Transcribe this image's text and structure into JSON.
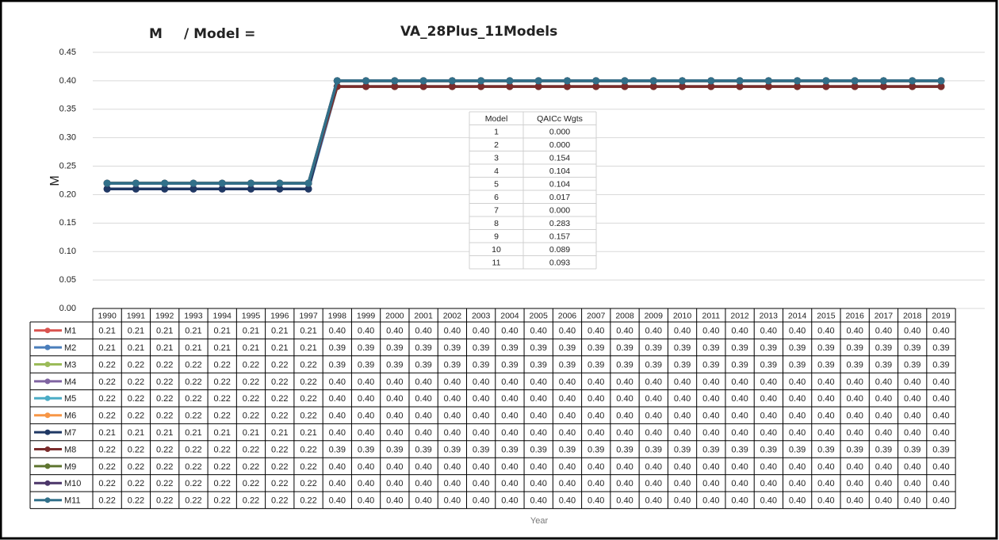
{
  "chart_data": {
    "type": "line",
    "title_label": "M",
    "title_model_label": "/ Model =",
    "title": "VA_28Plus_11Models",
    "y_label": "M",
    "x_label": "Year",
    "categories": [
      "1990",
      "1991",
      "1992",
      "1993",
      "1994",
      "1995",
      "1996",
      "1997",
      "1998",
      "1999",
      "2000",
      "2001",
      "2002",
      "2003",
      "2004",
      "2005",
      "2006",
      "2007",
      "2008",
      "2009",
      "2010",
      "2011",
      "2012",
      "2013",
      "2014",
      "2015",
      "2016",
      "2017",
      "2018",
      "2019"
    ],
    "ylim": [
      0,
      0.45
    ],
    "yticks": [
      {
        "value": 0,
        "label": "0.00"
      },
      0.05,
      {
        "value": 0.1,
        "label": "0.10"
      },
      0.15,
      {
        "value": 0.2,
        "label": "0.20"
      },
      0.25,
      {
        "value": 0.3,
        "label": "0.30"
      },
      0.35,
      {
        "value": 0.4,
        "label": "0.40"
      },
      0.45
    ],
    "grid": true,
    "series": [
      {
        "name": "M1",
        "color": "#d9534f",
        "values": [
          0.21,
          0.21,
          0.21,
          0.21,
          0.21,
          0.21,
          0.21,
          0.21,
          0.4,
          0.4,
          0.4,
          0.4,
          0.4,
          0.4,
          0.4,
          0.4,
          0.4,
          0.4,
          0.4,
          0.4,
          0.4,
          0.4,
          0.4,
          0.4,
          0.4,
          0.4,
          0.4,
          0.4,
          0.4,
          0.4
        ],
        "value_labels": [
          "0.21",
          "0.21",
          "0.21",
          "0.21",
          "0.21",
          "0.21",
          "0.21",
          "0.21",
          "0.40",
          "0.40",
          "0.40",
          "0.40",
          "0.40",
          "0.40",
          "0.40",
          "0.40",
          "0.40",
          "0.40",
          "0.40",
          "0.40",
          "0.40",
          "0.40",
          "0.40",
          "0.40",
          "0.40",
          "0.40",
          "0.40",
          "0.40",
          "0.40",
          "0.40"
        ]
      },
      {
        "name": "M2",
        "color": "#4a7ebb",
        "values": [
          0.21,
          0.21,
          0.21,
          0.21,
          0.21,
          0.21,
          0.21,
          0.21,
          0.39,
          0.39,
          0.39,
          0.39,
          0.39,
          0.39,
          0.39,
          0.39,
          0.39,
          0.39,
          0.39,
          0.39,
          0.39,
          0.39,
          0.39,
          0.39,
          0.39,
          0.39,
          0.39,
          0.39,
          0.39,
          0.39
        ],
        "value_labels": [
          "0.21",
          "0.21",
          "0.21",
          "0.21",
          "0.21",
          "0.21",
          "0.21",
          "0.21",
          "0.39",
          "0.39",
          "0.39",
          "0.39",
          "0.39",
          "0.39",
          "0.39",
          "0.39",
          "0.39",
          "0.39",
          "0.39",
          "0.39",
          "0.39",
          "0.39",
          "0.39",
          "0.39",
          "0.39",
          "0.39",
          "0.39",
          "0.39",
          "0.39",
          "0.39"
        ]
      },
      {
        "name": "M3",
        "color": "#9bbb59",
        "values": [
          0.22,
          0.22,
          0.22,
          0.22,
          0.22,
          0.22,
          0.22,
          0.22,
          0.39,
          0.39,
          0.39,
          0.39,
          0.39,
          0.39,
          0.39,
          0.39,
          0.39,
          0.39,
          0.39,
          0.39,
          0.39,
          0.39,
          0.39,
          0.39,
          0.39,
          0.39,
          0.39,
          0.39,
          0.39,
          0.39
        ],
        "value_labels": [
          "0.22",
          "0.22",
          "0.22",
          "0.22",
          "0.22",
          "0.22",
          "0.22",
          "0.22",
          "0.39",
          "0.39",
          "0.39",
          "0.39",
          "0.39",
          "0.39",
          "0.39",
          "0.39",
          "0.39",
          "0.39",
          "0.39",
          "0.39",
          "0.39",
          "0.39",
          "0.39",
          "0.39",
          "0.39",
          "0.39",
          "0.39",
          "0.39",
          "0.39",
          "0.39"
        ]
      },
      {
        "name": "M4",
        "color": "#8064a2",
        "values": [
          0.22,
          0.22,
          0.22,
          0.22,
          0.22,
          0.22,
          0.22,
          0.22,
          0.4,
          0.4,
          0.4,
          0.4,
          0.4,
          0.4,
          0.4,
          0.4,
          0.4,
          0.4,
          0.4,
          0.4,
          0.4,
          0.4,
          0.4,
          0.4,
          0.4,
          0.4,
          0.4,
          0.4,
          0.4,
          0.4
        ],
        "value_labels": [
          "0.22",
          "0.22",
          "0.22",
          "0.22",
          "0.22",
          "0.22",
          "0.22",
          "0.22",
          "0.40",
          "0.40",
          "0.40",
          "0.40",
          "0.40",
          "0.40",
          "0.40",
          "0.40",
          "0.40",
          "0.40",
          "0.40",
          "0.40",
          "0.40",
          "0.40",
          "0.40",
          "0.40",
          "0.40",
          "0.40",
          "0.40",
          "0.40",
          "0.40",
          "0.40"
        ]
      },
      {
        "name": "M5",
        "color": "#4bacc6",
        "values": [
          0.22,
          0.22,
          0.22,
          0.22,
          0.22,
          0.22,
          0.22,
          0.22,
          0.4,
          0.4,
          0.4,
          0.4,
          0.4,
          0.4,
          0.4,
          0.4,
          0.4,
          0.4,
          0.4,
          0.4,
          0.4,
          0.4,
          0.4,
          0.4,
          0.4,
          0.4,
          0.4,
          0.4,
          0.4,
          0.4
        ],
        "value_labels": [
          "0.22",
          "0.22",
          "0.22",
          "0.22",
          "0.22",
          "0.22",
          "0.22",
          "0.22",
          "0.40",
          "0.40",
          "0.40",
          "0.40",
          "0.40",
          "0.40",
          "0.40",
          "0.40",
          "0.40",
          "0.40",
          "0.40",
          "0.40",
          "0.40",
          "0.40",
          "0.40",
          "0.40",
          "0.40",
          "0.40",
          "0.40",
          "0.40",
          "0.40",
          "0.40"
        ]
      },
      {
        "name": "M6",
        "color": "#f79646",
        "values": [
          0.22,
          0.22,
          0.22,
          0.22,
          0.22,
          0.22,
          0.22,
          0.22,
          0.4,
          0.4,
          0.4,
          0.4,
          0.4,
          0.4,
          0.4,
          0.4,
          0.4,
          0.4,
          0.4,
          0.4,
          0.4,
          0.4,
          0.4,
          0.4,
          0.4,
          0.4,
          0.4,
          0.4,
          0.4,
          0.4
        ],
        "value_labels": [
          "0.22",
          "0.22",
          "0.22",
          "0.22",
          "0.22",
          "0.22",
          "0.22",
          "0.22",
          "0.40",
          "0.40",
          "0.40",
          "0.40",
          "0.40",
          "0.40",
          "0.40",
          "0.40",
          "0.40",
          "0.40",
          "0.40",
          "0.40",
          "0.40",
          "0.40",
          "0.40",
          "0.40",
          "0.40",
          "0.40",
          "0.40",
          "0.40",
          "0.40",
          "0.40"
        ]
      },
      {
        "name": "M7",
        "color": "#1f3864",
        "values": [
          0.21,
          0.21,
          0.21,
          0.21,
          0.21,
          0.21,
          0.21,
          0.21,
          0.4,
          0.4,
          0.4,
          0.4,
          0.4,
          0.4,
          0.4,
          0.4,
          0.4,
          0.4,
          0.4,
          0.4,
          0.4,
          0.4,
          0.4,
          0.4,
          0.4,
          0.4,
          0.4,
          0.4,
          0.4,
          0.4
        ],
        "value_labels": [
          "0.21",
          "0.21",
          "0.21",
          "0.21",
          "0.21",
          "0.21",
          "0.21",
          "0.21",
          "0.40",
          "0.40",
          "0.40",
          "0.40",
          "0.40",
          "0.40",
          "0.40",
          "0.40",
          "0.40",
          "0.40",
          "0.40",
          "0.40",
          "0.40",
          "0.40",
          "0.40",
          "0.40",
          "0.40",
          "0.40",
          "0.40",
          "0.40",
          "0.40",
          "0.40"
        ]
      },
      {
        "name": "M8",
        "color": "#7b2c2c",
        "values": [
          0.22,
          0.22,
          0.22,
          0.22,
          0.22,
          0.22,
          0.22,
          0.22,
          0.39,
          0.39,
          0.39,
          0.39,
          0.39,
          0.39,
          0.39,
          0.39,
          0.39,
          0.39,
          0.39,
          0.39,
          0.39,
          0.39,
          0.39,
          0.39,
          0.39,
          0.39,
          0.39,
          0.39,
          0.39,
          0.39
        ],
        "value_labels": [
          "0.22",
          "0.22",
          "0.22",
          "0.22",
          "0.22",
          "0.22",
          "0.22",
          "0.22",
          "0.39",
          "0.39",
          "0.39",
          "0.39",
          "0.39",
          "0.39",
          "0.39",
          "0.39",
          "0.39",
          "0.39",
          "0.39",
          "0.39",
          "0.39",
          "0.39",
          "0.39",
          "0.39",
          "0.39",
          "0.39",
          "0.39",
          "0.39",
          "0.39",
          "0.39"
        ]
      },
      {
        "name": "M9",
        "color": "#5f7530",
        "values": [
          0.22,
          0.22,
          0.22,
          0.22,
          0.22,
          0.22,
          0.22,
          0.22,
          0.4,
          0.4,
          0.4,
          0.4,
          0.4,
          0.4,
          0.4,
          0.4,
          0.4,
          0.4,
          0.4,
          0.4,
          0.4,
          0.4,
          0.4,
          0.4,
          0.4,
          0.4,
          0.4,
          0.4,
          0.4,
          0.4
        ],
        "value_labels": [
          "0.22",
          "0.22",
          "0.22",
          "0.22",
          "0.22",
          "0.22",
          "0.22",
          "0.22",
          "0.40",
          "0.40",
          "0.40",
          "0.40",
          "0.40",
          "0.40",
          "0.40",
          "0.40",
          "0.40",
          "0.40",
          "0.40",
          "0.40",
          "0.40",
          "0.40",
          "0.40",
          "0.40",
          "0.40",
          "0.40",
          "0.40",
          "0.40",
          "0.40",
          "0.40"
        ]
      },
      {
        "name": "M10",
        "color": "#4b3569",
        "values": [
          0.22,
          0.22,
          0.22,
          0.22,
          0.22,
          0.22,
          0.22,
          0.22,
          0.4,
          0.4,
          0.4,
          0.4,
          0.4,
          0.4,
          0.4,
          0.4,
          0.4,
          0.4,
          0.4,
          0.4,
          0.4,
          0.4,
          0.4,
          0.4,
          0.4,
          0.4,
          0.4,
          0.4,
          0.4,
          0.4
        ],
        "value_labels": [
          "0.22",
          "0.22",
          "0.22",
          "0.22",
          "0.22",
          "0.22",
          "0.22",
          "0.22",
          "0.40",
          "0.40",
          "0.40",
          "0.40",
          "0.40",
          "0.40",
          "0.40",
          "0.40",
          "0.40",
          "0.40",
          "0.40",
          "0.40",
          "0.40",
          "0.40",
          "0.40",
          "0.40",
          "0.40",
          "0.40",
          "0.40",
          "0.40",
          "0.40",
          "0.40"
        ]
      },
      {
        "name": "M11",
        "color": "#31708a",
        "values": [
          0.22,
          0.22,
          0.22,
          0.22,
          0.22,
          0.22,
          0.22,
          0.22,
          0.4,
          0.4,
          0.4,
          0.4,
          0.4,
          0.4,
          0.4,
          0.4,
          0.4,
          0.4,
          0.4,
          0.4,
          0.4,
          0.4,
          0.4,
          0.4,
          0.4,
          0.4,
          0.4,
          0.4,
          0.4,
          0.4
        ],
        "value_labels": [
          "0.22",
          "0.22",
          "0.22",
          "0.22",
          "0.22",
          "0.22",
          "0.22",
          "0.22",
          "0.40",
          "0.40",
          "0.40",
          "0.40",
          "0.40",
          "0.40",
          "0.40",
          "0.40",
          "0.40",
          "0.40",
          "0.40",
          "0.40",
          "0.40",
          "0.40",
          "0.40",
          "0.40",
          "0.40",
          "0.40",
          "0.40",
          "0.40",
          "0.40",
          "0.40"
        ]
      }
    ],
    "inset_table": {
      "columns": [
        "Model",
        "QAICc Wgts"
      ],
      "rows": [
        [
          "1",
          "0.000"
        ],
        [
          "2",
          "0.000"
        ],
        [
          "3",
          "0.154"
        ],
        [
          "4",
          "0.104"
        ],
        [
          "5",
          "0.104"
        ],
        [
          "6",
          "0.017"
        ],
        [
          "7",
          "0.000"
        ],
        [
          "8",
          "0.283"
        ],
        [
          "9",
          "0.157"
        ],
        [
          "10",
          "0.089"
        ],
        [
          "11",
          "0.093"
        ]
      ]
    }
  }
}
